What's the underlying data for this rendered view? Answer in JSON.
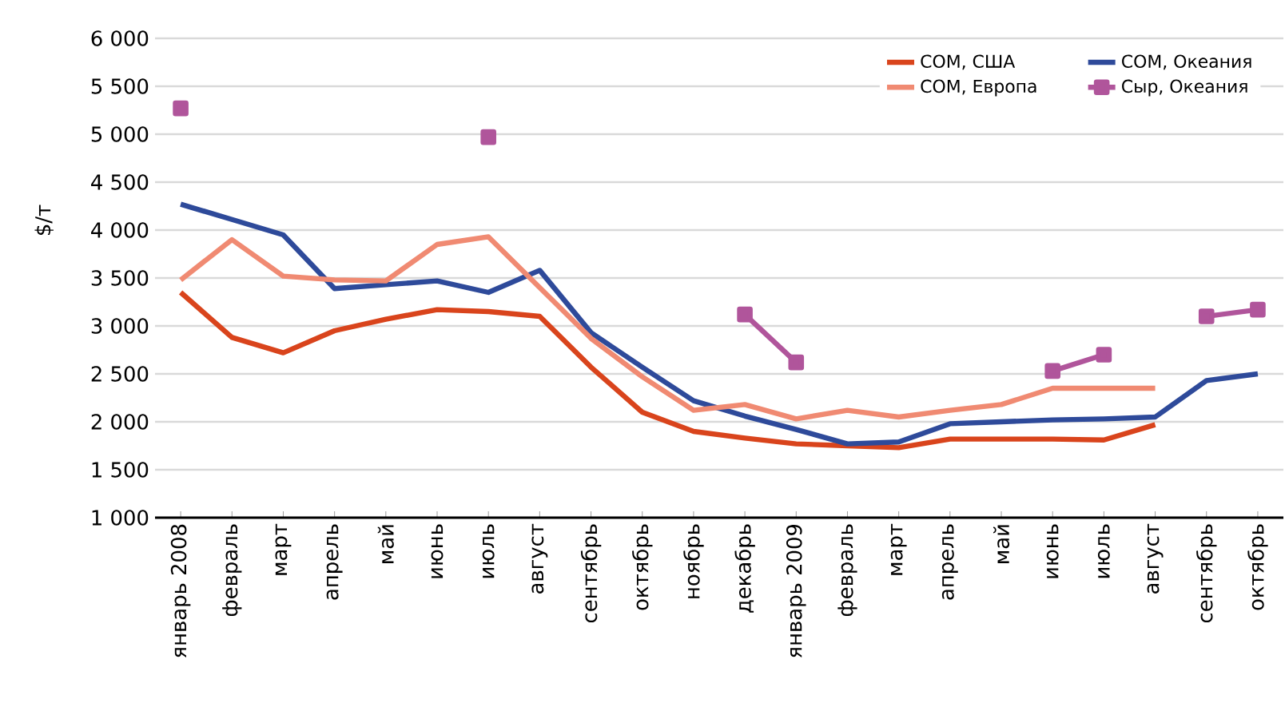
{
  "chart_data": {
    "type": "line",
    "ylabel": "$/т",
    "categories": [
      "январь 2008",
      "февраль",
      "март",
      "апрель",
      "май",
      "июнь",
      "июль",
      "август",
      "сентябрь",
      "октябрь",
      "ноябрь",
      "декабрь",
      "январь 2009",
      "февраль",
      "март",
      "апрель",
      "май",
      "июнь",
      "июль",
      "август",
      "сентябрь",
      "октябрь"
    ],
    "series": [
      {
        "name": "СОМ, США",
        "color": "#d9441c",
        "values": [
          3350,
          2880,
          2720,
          2950,
          3070,
          3170,
          3150,
          3100,
          2570,
          2100,
          1900,
          1830,
          1770,
          1750,
          1730,
          1820,
          1820,
          1820,
          1810,
          1970,
          null,
          null
        ]
      },
      {
        "name": "СОМ, Океания",
        "color": "#2e4a9a",
        "values": [
          4270,
          4110,
          3950,
          3390,
          3430,
          3470,
          3350,
          3580,
          2930,
          2570,
          2220,
          2060,
          1920,
          1770,
          1790,
          1980,
          2000,
          2020,
          2030,
          2050,
          2430,
          2500
        ]
      },
      {
        "name": "СОМ, Европа",
        "color": "#f08a72",
        "values": [
          3480,
          3900,
          3520,
          3480,
          3470,
          3850,
          3930,
          3400,
          2870,
          2470,
          2120,
          2180,
          2030,
          2120,
          2050,
          2120,
          2180,
          2350,
          2350,
          2350,
          null,
          null
        ]
      },
      {
        "name": "Сыр, Океания",
        "color": "#b0559b",
        "marker": "square",
        "values": [
          5270,
          null,
          null,
          null,
          null,
          null,
          4970,
          null,
          null,
          null,
          null,
          3120,
          2620,
          null,
          null,
          null,
          null,
          2530,
          2700,
          null,
          3100,
          3170
        ]
      }
    ],
    "ylim": [
      1000,
      6000
    ],
    "yticks": [
      {
        "value": 1000,
        "label": "1 000"
      },
      {
        "value": 1500,
        "label": "1 500"
      },
      {
        "value": 2000,
        "label": "2 000"
      },
      {
        "value": 2500,
        "label": "2 500"
      },
      {
        "value": 3000,
        "label": "3 000"
      },
      {
        "value": 3500,
        "label": "3 500"
      },
      {
        "value": 4000,
        "label": "4 000"
      },
      {
        "value": 4500,
        "label": "4 500"
      },
      {
        "value": 5000,
        "label": "5 000"
      },
      {
        "value": 5500,
        "label": "5 500"
      },
      {
        "value": 6000,
        "label": "6 000"
      }
    ],
    "grid": "y",
    "legend": "top right",
    "marker": "none",
    "line_style": "solid"
  }
}
